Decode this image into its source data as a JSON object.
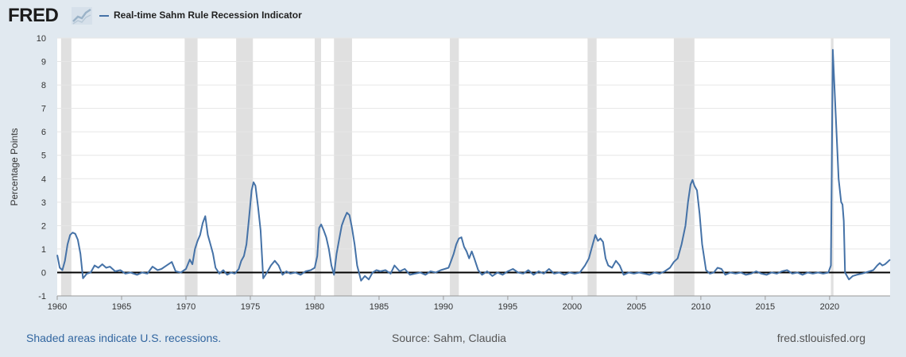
{
  "header": {
    "logo_text": "FRED",
    "logo_icon": "chart-line-icon",
    "series_label": "Real-time Sahm Rule Recession Indicator"
  },
  "footer": {
    "recession_note": "Shaded areas indicate U.S. recessions.",
    "source": "Source: Sahm, Claudia",
    "site": "fred.stlouisfed.org"
  },
  "colors": {
    "background": "#e1e9f0",
    "plot": "#ffffff",
    "series": "#4572a7",
    "recession": "#e0e0e0",
    "zero_line": "#000000"
  },
  "chart_data": {
    "type": "line",
    "title": "",
    "xlabel": "",
    "ylabel": "Percentage Points",
    "xlim": [
      1960,
      2024.7
    ],
    "ylim": [
      -1,
      10
    ],
    "x_ticks": [
      "1960",
      "1965",
      "1970",
      "1975",
      "1980",
      "1985",
      "1990",
      "1995",
      "2000",
      "2005",
      "2010",
      "2015",
      "2020"
    ],
    "y_ticks": [
      "-1",
      "0",
      "1",
      "2",
      "3",
      "4",
      "5",
      "6",
      "7",
      "8",
      "9",
      "10"
    ],
    "grid": "horizontal",
    "legend": "top-left",
    "recessions": [
      [
        1960.3,
        1961.1
      ],
      [
        1969.9,
        1970.9
      ],
      [
        1973.9,
        1975.2
      ],
      [
        1980.0,
        1980.5
      ],
      [
        1981.5,
        1982.9
      ],
      [
        1990.5,
        1991.2
      ],
      [
        2001.2,
        2001.9
      ],
      [
        2007.9,
        2009.5
      ],
      [
        2020.1,
        2020.3
      ]
    ],
    "series": [
      {
        "name": "Real-time Sahm Rule Recession Indicator",
        "points": [
          [
            1960.0,
            0.75
          ],
          [
            1960.2,
            0.2
          ],
          [
            1960.4,
            0.1
          ],
          [
            1960.6,
            0.5
          ],
          [
            1960.8,
            1.2
          ],
          [
            1961.0,
            1.6
          ],
          [
            1961.2,
            1.7
          ],
          [
            1961.4,
            1.65
          ],
          [
            1961.6,
            1.4
          ],
          [
            1961.8,
            0.8
          ],
          [
            1962.0,
            -0.25
          ],
          [
            1962.3,
            -0.05
          ],
          [
            1962.6,
            0.0
          ],
          [
            1962.9,
            0.3
          ],
          [
            1963.2,
            0.2
          ],
          [
            1963.5,
            0.35
          ],
          [
            1963.8,
            0.2
          ],
          [
            1964.1,
            0.25
          ],
          [
            1964.5,
            0.05
          ],
          [
            1964.9,
            0.1
          ],
          [
            1965.3,
            -0.05
          ],
          [
            1965.7,
            0.0
          ],
          [
            1966.2,
            -0.1
          ],
          [
            1966.6,
            0.0
          ],
          [
            1967.0,
            -0.05
          ],
          [
            1967.4,
            0.25
          ],
          [
            1967.8,
            0.1
          ],
          [
            1968.1,
            0.15
          ],
          [
            1968.5,
            0.3
          ],
          [
            1968.9,
            0.45
          ],
          [
            1969.2,
            0.05
          ],
          [
            1969.6,
            0.0
          ],
          [
            1970.0,
            0.15
          ],
          [
            1970.3,
            0.55
          ],
          [
            1970.5,
            0.35
          ],
          [
            1970.7,
            1.0
          ],
          [
            1970.9,
            1.35
          ],
          [
            1971.1,
            1.6
          ],
          [
            1971.3,
            2.1
          ],
          [
            1971.5,
            2.4
          ],
          [
            1971.7,
            1.6
          ],
          [
            1971.9,
            1.2
          ],
          [
            1972.1,
            0.8
          ],
          [
            1972.3,
            0.2
          ],
          [
            1972.6,
            -0.05
          ],
          [
            1972.9,
            0.1
          ],
          [
            1973.2,
            -0.1
          ],
          [
            1973.5,
            0.0
          ],
          [
            1973.8,
            -0.05
          ],
          [
            1974.1,
            0.15
          ],
          [
            1974.3,
            0.5
          ],
          [
            1974.5,
            0.7
          ],
          [
            1974.7,
            1.2
          ],
          [
            1974.9,
            2.3
          ],
          [
            1975.1,
            3.5
          ],
          [
            1975.25,
            3.85
          ],
          [
            1975.4,
            3.7
          ],
          [
            1975.6,
            2.8
          ],
          [
            1975.8,
            1.8
          ],
          [
            1976.0,
            -0.25
          ],
          [
            1976.3,
            0.0
          ],
          [
            1976.6,
            0.3
          ],
          [
            1976.9,
            0.5
          ],
          [
            1977.2,
            0.3
          ],
          [
            1977.5,
            -0.1
          ],
          [
            1977.8,
            0.05
          ],
          [
            1978.1,
            -0.05
          ],
          [
            1978.5,
            0.0
          ],
          [
            1978.9,
            -0.1
          ],
          [
            1979.3,
            0.05
          ],
          [
            1979.7,
            0.1
          ],
          [
            1980.0,
            0.2
          ],
          [
            1980.2,
            0.7
          ],
          [
            1980.35,
            1.9
          ],
          [
            1980.5,
            2.05
          ],
          [
            1980.7,
            1.8
          ],
          [
            1980.9,
            1.5
          ],
          [
            1981.1,
            1.0
          ],
          [
            1981.3,
            0.3
          ],
          [
            1981.5,
            -0.1
          ],
          [
            1981.7,
            0.8
          ],
          [
            1981.9,
            1.4
          ],
          [
            1982.1,
            2.0
          ],
          [
            1982.3,
            2.3
          ],
          [
            1982.5,
            2.55
          ],
          [
            1982.7,
            2.45
          ],
          [
            1982.9,
            1.9
          ],
          [
            1983.1,
            1.2
          ],
          [
            1983.3,
            0.3
          ],
          [
            1983.6,
            -0.35
          ],
          [
            1983.9,
            -0.15
          ],
          [
            1984.2,
            -0.3
          ],
          [
            1984.5,
            0.0
          ],
          [
            1984.8,
            0.1
          ],
          [
            1985.1,
            0.05
          ],
          [
            1985.5,
            0.1
          ],
          [
            1985.9,
            -0.05
          ],
          [
            1986.2,
            0.3
          ],
          [
            1986.6,
            0.05
          ],
          [
            1987.0,
            0.15
          ],
          [
            1987.4,
            -0.1
          ],
          [
            1987.8,
            -0.05
          ],
          [
            1988.2,
            0.0
          ],
          [
            1988.6,
            -0.1
          ],
          [
            1989.0,
            0.05
          ],
          [
            1989.4,
            0.0
          ],
          [
            1989.8,
            0.1
          ],
          [
            1990.1,
            0.15
          ],
          [
            1990.4,
            0.2
          ],
          [
            1990.6,
            0.5
          ],
          [
            1990.8,
            0.8
          ],
          [
            1991.0,
            1.2
          ],
          [
            1991.2,
            1.45
          ],
          [
            1991.4,
            1.5
          ],
          [
            1991.6,
            1.1
          ],
          [
            1991.8,
            0.9
          ],
          [
            1992.0,
            0.6
          ],
          [
            1992.2,
            0.9
          ],
          [
            1992.4,
            0.6
          ],
          [
            1992.7,
            0.1
          ],
          [
            1993.0,
            -0.1
          ],
          [
            1993.4,
            0.05
          ],
          [
            1993.8,
            -0.15
          ],
          [
            1994.2,
            0.0
          ],
          [
            1994.6,
            -0.1
          ],
          [
            1995.0,
            0.05
          ],
          [
            1995.4,
            0.15
          ],
          [
            1995.8,
            0.0
          ],
          [
            1996.2,
            -0.05
          ],
          [
            1996.6,
            0.1
          ],
          [
            1997.0,
            -0.1
          ],
          [
            1997.4,
            0.05
          ],
          [
            1997.8,
            -0.05
          ],
          [
            1998.2,
            0.15
          ],
          [
            1998.6,
            -0.05
          ],
          [
            1999.0,
            0.0
          ],
          [
            1999.4,
            -0.1
          ],
          [
            1999.8,
            0.0
          ],
          [
            2000.2,
            -0.05
          ],
          [
            2000.6,
            0.0
          ],
          [
            2001.0,
            0.3
          ],
          [
            2001.3,
            0.6
          ],
          [
            2001.6,
            1.2
          ],
          [
            2001.8,
            1.6
          ],
          [
            2002.0,
            1.35
          ],
          [
            2002.2,
            1.45
          ],
          [
            2002.4,
            1.3
          ],
          [
            2002.6,
            0.6
          ],
          [
            2002.8,
            0.3
          ],
          [
            2003.1,
            0.2
          ],
          [
            2003.4,
            0.5
          ],
          [
            2003.7,
            0.3
          ],
          [
            2004.0,
            -0.1
          ],
          [
            2004.4,
            0.0
          ],
          [
            2004.8,
            -0.05
          ],
          [
            2005.2,
            0.0
          ],
          [
            2005.6,
            -0.05
          ],
          [
            2006.0,
            -0.1
          ],
          [
            2006.4,
            0.0
          ],
          [
            2006.8,
            -0.05
          ],
          [
            2007.2,
            0.05
          ],
          [
            2007.6,
            0.2
          ],
          [
            2007.9,
            0.45
          ],
          [
            2008.2,
            0.6
          ],
          [
            2008.5,
            1.2
          ],
          [
            2008.8,
            2.0
          ],
          [
            2009.0,
            3.0
          ],
          [
            2009.2,
            3.75
          ],
          [
            2009.35,
            3.95
          ],
          [
            2009.5,
            3.7
          ],
          [
            2009.7,
            3.5
          ],
          [
            2009.9,
            2.5
          ],
          [
            2010.1,
            1.2
          ],
          [
            2010.4,
            0.1
          ],
          [
            2010.7,
            -0.05
          ],
          [
            2011.0,
            0.0
          ],
          [
            2011.3,
            0.2
          ],
          [
            2011.6,
            0.15
          ],
          [
            2011.9,
            -0.1
          ],
          [
            2012.3,
            0.0
          ],
          [
            2012.7,
            -0.05
          ],
          [
            2013.1,
            0.0
          ],
          [
            2013.5,
            -0.1
          ],
          [
            2013.9,
            -0.05
          ],
          [
            2014.3,
            0.05
          ],
          [
            2014.7,
            -0.05
          ],
          [
            2015.1,
            -0.1
          ],
          [
            2015.5,
            0.0
          ],
          [
            2015.9,
            -0.05
          ],
          [
            2016.3,
            0.05
          ],
          [
            2016.7,
            0.1
          ],
          [
            2017.1,
            -0.05
          ],
          [
            2017.5,
            0.0
          ],
          [
            2017.9,
            -0.1
          ],
          [
            2018.3,
            0.0
          ],
          [
            2018.7,
            -0.05
          ],
          [
            2019.1,
            0.0
          ],
          [
            2019.5,
            -0.05
          ],
          [
            2019.9,
            0.0
          ],
          [
            2020.1,
            0.3
          ],
          [
            2020.25,
            9.5
          ],
          [
            2020.45,
            7.0
          ],
          [
            2020.7,
            4.0
          ],
          [
            2020.9,
            3.0
          ],
          [
            2021.0,
            2.9
          ],
          [
            2021.1,
            2.2
          ],
          [
            2021.2,
            0.0
          ],
          [
            2021.5,
            -0.3
          ],
          [
            2021.8,
            -0.15
          ],
          [
            2022.1,
            -0.1
          ],
          [
            2022.5,
            -0.05
          ],
          [
            2022.8,
            0.0
          ],
          [
            2023.1,
            0.05
          ],
          [
            2023.4,
            0.1
          ],
          [
            2023.7,
            0.3
          ],
          [
            2023.9,
            0.4
          ],
          [
            2024.1,
            0.3
          ],
          [
            2024.3,
            0.35
          ],
          [
            2024.5,
            0.45
          ],
          [
            2024.7,
            0.55
          ]
        ]
      }
    ]
  }
}
